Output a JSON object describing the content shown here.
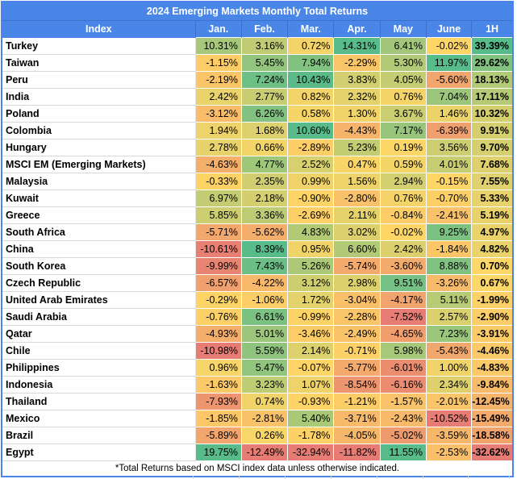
{
  "title": "2024 Emerging Markets Monthly Total Returns",
  "footnote": "*Total Returns based on MSCI index data unless otherwise indicated.",
  "columns": [
    "Index",
    "Jan.",
    "Feb.",
    "Mar.",
    "Apr.",
    "May",
    "June",
    "1H"
  ],
  "chart_data": {
    "type": "heatmap",
    "title": "2024 Emerging Markets Monthly Total Returns",
    "columns": [
      "Jan.",
      "Feb.",
      "Mar.",
      "Apr.",
      "May",
      "June",
      "1H"
    ],
    "unit": "%",
    "value_format": "two decimals with % suffix",
    "rows": [
      {
        "index": "Turkey",
        "values": [
          10.31,
          3.16,
          0.72,
          14.31,
          6.41,
          -0.02,
          39.39
        ]
      },
      {
        "index": "Taiwan",
        "values": [
          -1.15,
          5.45,
          7.94,
          -2.29,
          5.3,
          11.97,
          29.62
        ]
      },
      {
        "index": "Peru",
        "values": [
          -2.19,
          7.24,
          10.43,
          3.83,
          4.05,
          -5.6,
          18.13
        ]
      },
      {
        "index": "India",
        "values": [
          2.42,
          2.77,
          0.82,
          2.32,
          0.76,
          7.04,
          17.11
        ]
      },
      {
        "index": "Poland",
        "values": [
          -3.12,
          6.26,
          0.58,
          1.3,
          3.67,
          1.46,
          10.32
        ]
      },
      {
        "index": "Colombia",
        "values": [
          1.94,
          1.68,
          10.6,
          -4.43,
          7.17,
          -6.39,
          9.91
        ]
      },
      {
        "index": "Hungary",
        "values": [
          2.78,
          0.66,
          -2.89,
          5.23,
          0.19,
          3.56,
          9.7
        ]
      },
      {
        "index": "MSCI EM (Emerging Markets)",
        "values": [
          -4.63,
          4.77,
          2.52,
          0.47,
          0.59,
          4.01,
          7.68
        ]
      },
      {
        "index": "Malaysia",
        "values": [
          -0.33,
          2.35,
          0.99,
          1.56,
          2.94,
          -0.15,
          7.55
        ]
      },
      {
        "index": "Kuwait",
        "values": [
          6.97,
          2.18,
          -0.9,
          -2.8,
          0.76,
          -0.7,
          5.33
        ]
      },
      {
        "index": "Greece",
        "values": [
          5.85,
          3.36,
          -2.69,
          2.11,
          -0.84,
          -2.41,
          5.19
        ]
      },
      {
        "index": "South Africa",
        "values": [
          -5.71,
          -5.62,
          4.83,
          3.02,
          -0.02,
          9.25,
          4.97
        ]
      },
      {
        "index": "China",
        "values": [
          -10.61,
          8.39,
          0.95,
          6.6,
          2.42,
          -1.84,
          4.82
        ]
      },
      {
        "index": "South Korea",
        "values": [
          -9.99,
          7.43,
          5.26,
          -5.74,
          -3.6,
          8.88,
          0.7
        ]
      },
      {
        "index": "Czech Republic",
        "values": [
          -6.57,
          -4.22,
          3.12,
          2.98,
          9.51,
          -3.26,
          0.67
        ]
      },
      {
        "index": "United Arab Emirates",
        "values": [
          -0.29,
          -1.06,
          1.72,
          -3.04,
          -4.17,
          5.11,
          -1.99
        ]
      },
      {
        "index": "Saudi Arabia",
        "values": [
          -0.76,
          6.61,
          -0.99,
          -2.28,
          -7.52,
          2.57,
          -2.9
        ]
      },
      {
        "index": "Qatar",
        "values": [
          -4.93,
          5.01,
          -3.46,
          -2.49,
          -4.65,
          7.23,
          -3.91
        ]
      },
      {
        "index": "Chile",
        "values": [
          -10.98,
          5.59,
          2.14,
          -0.71,
          5.98,
          -5.43,
          -4.46
        ]
      },
      {
        "index": "Philippines",
        "values": [
          0.96,
          5.47,
          -0.07,
          -5.77,
          -6.01,
          1.0,
          -4.83
        ]
      },
      {
        "index": "Indonesia",
        "values": [
          -1.63,
          3.23,
          1.07,
          -8.54,
          -6.16,
          2.34,
          -9.84
        ]
      },
      {
        "index": "Thailand",
        "values": [
          -7.93,
          0.74,
          -0.93,
          -1.21,
          -1.57,
          -2.01,
          -12.45
        ]
      },
      {
        "index": "Mexico",
        "values": [
          -1.85,
          -2.81,
          5.4,
          -3.71,
          -2.43,
          -10.52,
          -15.49
        ]
      },
      {
        "index": "Brazil",
        "values": [
          -5.89,
          0.26,
          -1.78,
          -4.05,
          -5.02,
          -3.59,
          -18.58
        ]
      },
      {
        "index": "Egypt",
        "values": [
          19.75,
          -12.49,
          -32.94,
          -11.82,
          11.55,
          -2.53,
          -32.62
        ]
      }
    ],
    "color_scale": {
      "negative": "#e67c73",
      "mid": "#ffd666",
      "positive": "#57bb8a",
      "rule": "per-column: yellow at 0, full green at column max, full red at column min"
    },
    "legend_position": "none",
    "grid": true
  },
  "colors": {
    "header_bg": "#4a86e8",
    "header_text": "#ffffff",
    "header_divider": "#3b6fc9",
    "table_border": "#4a86e8",
    "cell_divider": "#ffffff",
    "row_gridline": "#d9d9d9",
    "text": "#000000"
  }
}
